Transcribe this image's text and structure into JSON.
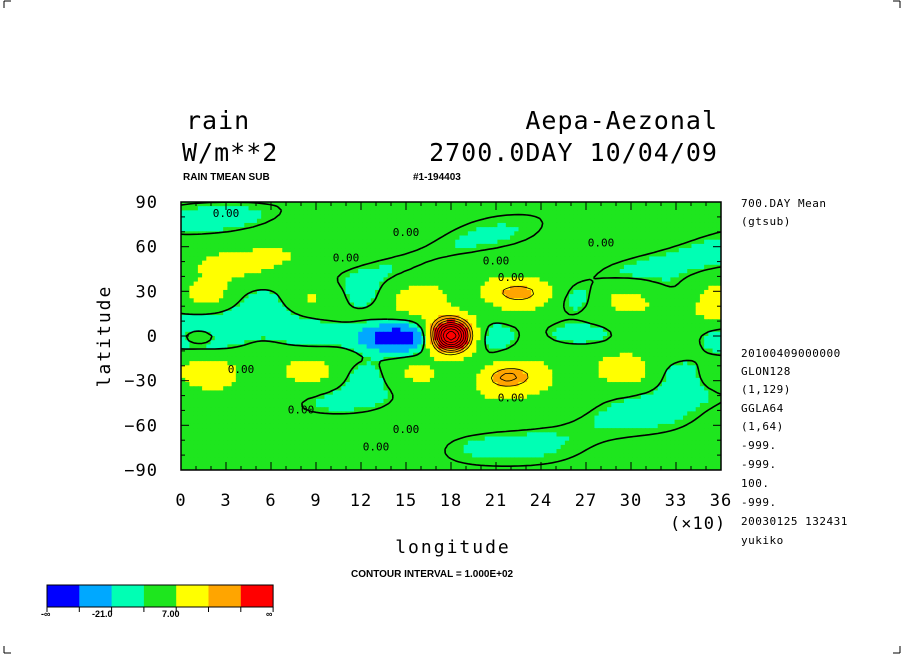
{
  "header": {
    "variable": "rain",
    "units": "W/m**2",
    "experiment": "Aepa-Aezonal",
    "time_line": "2700.0DAY 10/04/09",
    "sub_left": "RAIN TMEAN SUB",
    "sub_right": "#1-194403"
  },
  "side_info": {
    "mean_label": "700.DAY Mean",
    "tool": "(gtsub)",
    "lines": [
      "20100409000000",
      "GLON128",
      "(1,129)",
      "GGLA64",
      "(1,64)",
      "-999.",
      "-999.",
      "100.",
      "-999.",
      "20030125 132431",
      "yukiko"
    ]
  },
  "footer": {
    "contour_interval": "CONTOUR INTERVAL = 1.000E+02",
    "scale_factor": "(×10)"
  },
  "colorbar": {
    "colors": [
      "#0000ff",
      "#00a8ff",
      "#00ffb4",
      "#1ee61e",
      "#ffff00",
      "#ffa500",
      "#ff0000"
    ],
    "labels": [
      "-∞",
      "-21.0",
      "7.00",
      "∞"
    ]
  },
  "chart_data": {
    "type": "heatmap",
    "title": "rain",
    "xlabel": "longitude",
    "ylabel": "latitude",
    "xlim": [
      0,
      36
    ],
    "ylim": [
      -90,
      90
    ],
    "x_ticks": [
      "0",
      "3",
      "6",
      "9",
      "12",
      "15",
      "18",
      "21",
      "24",
      "27",
      "30",
      "33",
      "36"
    ],
    "y_ticks": [
      "90",
      "60",
      "30",
      "0",
      "-30",
      "-60",
      "-90"
    ],
    "contour_labels": [
      "0.00",
      "0.00",
      "0.00",
      "0.00",
      "0.00",
      "0.00",
      "0.00",
      "0.00",
      "0.00",
      "0.00",
      "0.00"
    ],
    "levels": [
      -21.0,
      7.0
    ],
    "field_maximum_lon": 18,
    "field_maximum_lat": 0
  }
}
